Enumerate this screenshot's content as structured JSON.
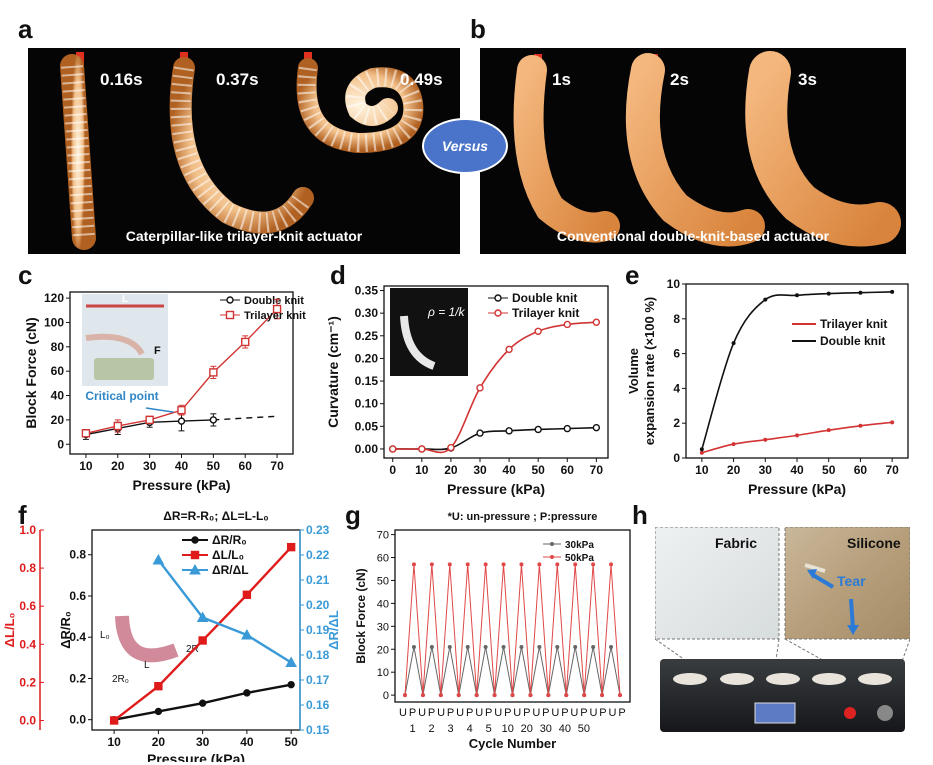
{
  "letters": {
    "a": "a",
    "b": "b",
    "c": "c",
    "d": "d",
    "e": "e",
    "f": "f",
    "g": "g",
    "h": "h"
  },
  "panel_a": {
    "times": [
      "0.16s",
      "0.37s",
      "0.49s"
    ],
    "caption": "Caterpillar-like trilayer-knit actuator"
  },
  "panel_b": {
    "times": [
      "1s",
      "2s",
      "3s"
    ],
    "caption": "Conventional double-knit-based actuator"
  },
  "versus": "Versus",
  "panel_h": {
    "fabric": "Fabric",
    "silicone": "Silicone",
    "tear": "Tear"
  },
  "chart_data": [
    {
      "id": "c",
      "type": "line",
      "xlabel": "Pressure (kPa)",
      "ylabel": "Block Force (cN)",
      "xlim": [
        5,
        75
      ],
      "ylim": [
        -8,
        125
      ],
      "xticks": [
        10,
        20,
        30,
        40,
        50,
        60,
        70
      ],
      "yticks": [
        0,
        20,
        40,
        60,
        80,
        100,
        120
      ],
      "inset_label_L": "L",
      "inset_label_F": "F",
      "annotation": "Critical point",
      "series": [
        {
          "name": "Double knit",
          "color": "#111111",
          "marker": "circle",
          "x": [
            10,
            20,
            30,
            40,
            50
          ],
          "y": [
            8,
            13,
            18,
            19,
            20
          ],
          "err": [
            4,
            5,
            4,
            8,
            5
          ],
          "dashed_extension": {
            "x": [
              50,
              70
            ],
            "y": [
              20,
              23
            ]
          }
        },
        {
          "name": "Trilayer knit",
          "color": "#d23434",
          "marker": "square",
          "x": [
            10,
            20,
            30,
            40,
            50,
            60,
            70
          ],
          "y": [
            9,
            15,
            20,
            28,
            59,
            84,
            111
          ],
          "err": [
            3,
            5,
            3,
            4,
            5,
            5,
            8
          ]
        }
      ]
    },
    {
      "id": "d",
      "type": "line",
      "xlabel": "Pressure (kPa)",
      "ylabel": "Curvature (cm⁻¹)",
      "xlim": [
        -3,
        74
      ],
      "ylim": [
        -0.02,
        0.36
      ],
      "xticks": [
        0,
        10,
        20,
        30,
        40,
        50,
        60,
        70
      ],
      "yticks": [
        0.0,
        0.05,
        0.1,
        0.15,
        0.2,
        0.25,
        0.3,
        0.35
      ],
      "inset_formula": "ρ = 1/k",
      "series": [
        {
          "name": "Double knit",
          "color": "#111111",
          "x": [
            0,
            10,
            20,
            30,
            40,
            50,
            60,
            70
          ],
          "y": [
            0,
            0,
            0.002,
            0.035,
            0.04,
            0.043,
            0.045,
            0.047
          ]
        },
        {
          "name": "Trilayer knit",
          "color": "#d23434",
          "x": [
            0,
            10,
            20,
            30,
            40,
            50,
            60,
            70
          ],
          "y": [
            0,
            0,
            0.003,
            0.135,
            0.22,
            0.26,
            0.275,
            0.28
          ]
        }
      ]
    },
    {
      "id": "e",
      "type": "line",
      "xlabel": "Pressure (kPa)",
      "ylabel": "Volume expansion rate (×100 %)",
      "ylabel_lines": [
        "Volume",
        "expansion rate (×100 %)"
      ],
      "xlim": [
        5,
        75
      ],
      "ylim": [
        0,
        10
      ],
      "xticks": [
        10,
        20,
        30,
        40,
        50,
        60,
        70
      ],
      "yticks": [
        0,
        2,
        4,
        6,
        8,
        10
      ],
      "series": [
        {
          "name": "Trilayer knit",
          "color": "#d23434",
          "x": [
            10,
            20,
            30,
            40,
            50,
            60,
            70
          ],
          "y": [
            0.3,
            0.8,
            1.05,
            1.3,
            1.6,
            1.85,
            2.05
          ]
        },
        {
          "name": "Double knit",
          "color": "#111111",
          "x": [
            10,
            20,
            30,
            40,
            50,
            60,
            70
          ],
          "y": [
            0.5,
            6.6,
            9.1,
            9.35,
            9.45,
            9.5,
            9.55
          ]
        }
      ]
    },
    {
      "id": "f",
      "type": "line",
      "title": "ΔR=R-R₀; ΔL=L-L₀",
      "xlabel": "Pressure (kPa)",
      "ylabel": "ΔR/R₀",
      "ylabel2": "ΔL/L₀",
      "ylabel3": "ΔR/ΔL",
      "xlim": [
        5,
        52
      ],
      "ylim": [
        -0.05,
        0.92
      ],
      "ylim2": [
        -0.05,
        1.0
      ],
      "ylim3": [
        0.15,
        0.23
      ],
      "xticks": [
        10,
        20,
        30,
        40,
        50
      ],
      "yticks": [
        0.0,
        0.2,
        0.4,
        0.6,
        0.8
      ],
      "yticks2": [
        0.0,
        0.2,
        0.4,
        0.6,
        0.8,
        1.0
      ],
      "yticks3": [
        0.15,
        0.16,
        0.17,
        0.18,
        0.19,
        0.2,
        0.21,
        0.22,
        0.23
      ],
      "inset_labels": [
        "L₀",
        "2R",
        "L",
        "2R₀"
      ],
      "series": [
        {
          "name": "ΔR/R₀",
          "color": "#111111",
          "marker": "circle",
          "axis": "left",
          "x": [
            10,
            20,
            30,
            40,
            50
          ],
          "y": [
            0.0,
            0.04,
            0.08,
            0.13,
            0.17
          ]
        },
        {
          "name": "ΔL/L₀",
          "color": "#e01b1b",
          "marker": "square",
          "axis": "left2",
          "x": [
            10,
            20,
            30,
            40,
            50
          ],
          "y": [
            0.0,
            0.18,
            0.42,
            0.66,
            0.91
          ]
        },
        {
          "name": "ΔR/ΔL",
          "color": "#3a9ad8",
          "marker": "triangle",
          "axis": "right",
          "x": [
            20,
            30,
            40,
            50
          ],
          "y": [
            0.218,
            0.195,
            0.188,
            0.177
          ]
        }
      ]
    },
    {
      "id": "g",
      "type": "line",
      "title": "*U: un-pressure ; P:pressure",
      "xlabel": "Cycle Number",
      "ylabel": "Block Force (cN)",
      "ylim": [
        -3,
        72
      ],
      "yticks": [
        0,
        10,
        20,
        30,
        40,
        50,
        60,
        70
      ],
      "xtick_labels": [
        "U",
        "P",
        "U",
        "P",
        "U",
        "P",
        "U",
        "P",
        "U",
        "P",
        "U",
        "P",
        "U",
        "P",
        "U",
        "P",
        "U",
        "P",
        "U",
        "P",
        "U",
        "P",
        "U",
        "P"
      ],
      "cycle_numbers": [
        "1",
        "2",
        "3",
        "4",
        "5",
        "10",
        "20",
        "30",
        "40",
        "50"
      ],
      "cycle_first_two_from_pairs": [
        [
          "1",
          1
        ],
        [
          "2",
          2
        ]
      ],
      "series": [
        {
          "name": "30kPa",
          "color": "#666666",
          "marker": "circle",
          "y": [
            0,
            21,
            0,
            21,
            0,
            21,
            0,
            21,
            0,
            21,
            0,
            21,
            0,
            21,
            0,
            21,
            0,
            21,
            0,
            21,
            0,
            21,
            0,
            21,
            0
          ]
        },
        {
          "name": "50kPa",
          "color": "#e04848",
          "marker": "circle",
          "y": [
            0,
            57,
            0,
            57,
            0,
            57,
            0,
            57,
            0,
            57,
            0,
            57,
            0,
            57,
            0,
            57,
            0,
            57,
            0,
            57,
            0,
            57,
            0,
            57,
            0
          ]
        }
      ]
    }
  ]
}
